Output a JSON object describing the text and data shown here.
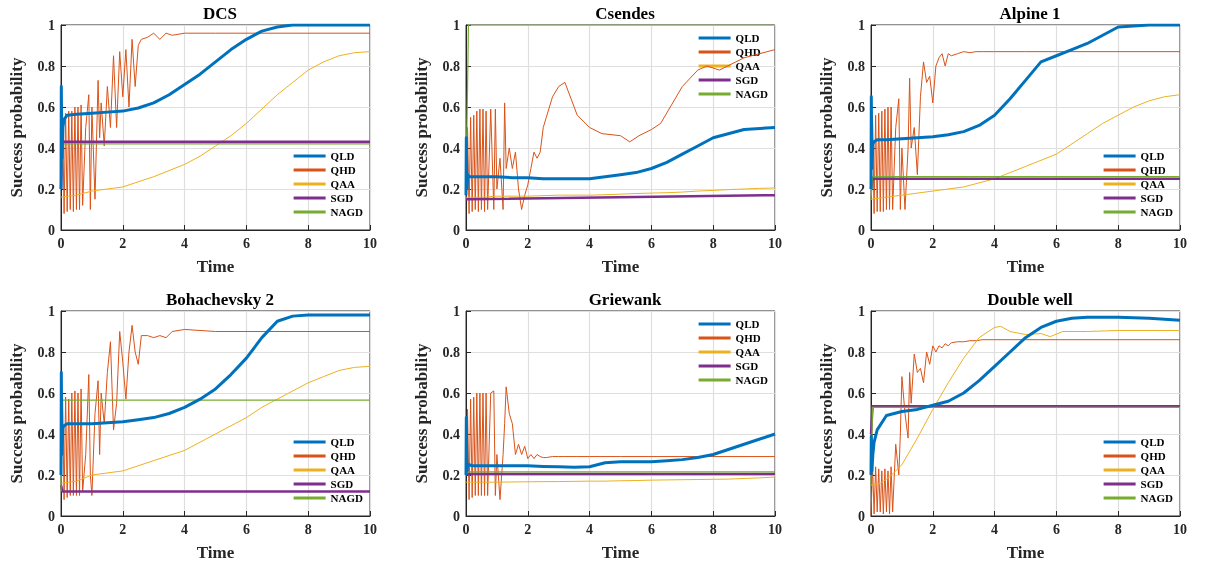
{
  "chart_data": [
    {
      "type": "line",
      "title": "DCS",
      "xlabel": "Time",
      "ylabel": "Success probability",
      "xlim": [
        0,
        10
      ],
      "ylim": [
        0,
        1
      ],
      "xticks": [
        0,
        2,
        4,
        6,
        8,
        10
      ],
      "yticks": [
        0,
        0.2,
        0.4,
        0.6,
        0.8,
        1
      ],
      "grid": true,
      "legend": "bottom right",
      "x": [
        0,
        0.01,
        0.03,
        0.06,
        0.1,
        0.2,
        0.5,
        1,
        1.5,
        2,
        2.5,
        3,
        3.5,
        4,
        4.5,
        5,
        5.5,
        6,
        6.5,
        7,
        7.5,
        8,
        9,
        10
      ],
      "series": [
        {
          "name": "QLD",
          "color": "#0072bd",
          "values": [
            0.2,
            0.7,
            0.35,
            0.5,
            0.54,
            0.56,
            0.565,
            0.57,
            0.575,
            0.58,
            0.595,
            0.62,
            0.66,
            0.71,
            0.76,
            0.82,
            0.88,
            0.93,
            0.97,
            0.99,
            1,
            1,
            1,
            1
          ]
        },
        {
          "name": "QHD",
          "color": "#d95319",
          "x": [
            0,
            0.05,
            0.1,
            0.15,
            0.2,
            0.25,
            0.3,
            0.35,
            0.4,
            0.45,
            0.5,
            0.55,
            0.6,
            0.65,
            0.7,
            0.8,
            0.9,
            0.95,
            1.0,
            1.1,
            1.2,
            1.25,
            1.3,
            1.4,
            1.5,
            1.6,
            1.7,
            1.8,
            1.9,
            2.0,
            2.1,
            2.2,
            2.3,
            2.4,
            2.5,
            2.6,
            2.8,
            3.0,
            3.2,
            3.4,
            3.6,
            4.0,
            5,
            10
          ],
          "values": [
            0.2,
            0.58,
            0.08,
            0.57,
            0.09,
            0.58,
            0.1,
            0.58,
            0.09,
            0.6,
            0.1,
            0.6,
            0.1,
            0.61,
            0.12,
            0.5,
            0.66,
            0.1,
            0.6,
            0.15,
            0.73,
            0.45,
            0.62,
            0.41,
            0.7,
            0.5,
            0.85,
            0.5,
            0.87,
            0.65,
            0.88,
            0.6,
            0.93,
            0.7,
            0.9,
            0.93,
            0.94,
            0.96,
            0.93,
            0.96,
            0.95,
            0.96,
            0.96,
            0.96
          ]
        },
        {
          "name": "QAA",
          "color": "#edb120",
          "x": [
            0,
            0.5,
            1,
            2,
            3,
            4,
            4.5,
            5,
            5.5,
            6,
            6.5,
            7,
            7.5,
            8,
            8.5,
            9,
            9.5,
            10
          ],
          "values": [
            0.16,
            0.17,
            0.19,
            0.21,
            0.26,
            0.32,
            0.36,
            0.41,
            0.46,
            0.52,
            0.59,
            0.66,
            0.72,
            0.78,
            0.82,
            0.85,
            0.865,
            0.87
          ]
        },
        {
          "name": "SGD",
          "color": "#7e2f8e",
          "x": [
            0,
            0.05,
            10
          ],
          "values": [
            0.2,
            0.43,
            0.43
          ]
        },
        {
          "name": "NAGD",
          "color": "#77ac30",
          "x": [
            0,
            0.05,
            10
          ],
          "values": [
            0.2,
            0.42,
            0.42
          ]
        }
      ]
    },
    {
      "type": "line",
      "title": "Csendes",
      "xlabel": "Time",
      "ylabel": "Success probability",
      "xlim": [
        0,
        10
      ],
      "ylim": [
        0,
        1
      ],
      "xticks": [
        0,
        2,
        4,
        6,
        8,
        10
      ],
      "yticks": [
        0,
        0.2,
        0.4,
        0.6,
        0.8,
        1
      ],
      "grid": true,
      "legend": "top right",
      "x": [
        0,
        0.01,
        0.03,
        0.06,
        0.1,
        0.2,
        0.5,
        1,
        1.5,
        2,
        2.5,
        3,
        3.5,
        4,
        4.5,
        5,
        5.5,
        6,
        6.5,
        7,
        7.5,
        8,
        9,
        10
      ],
      "series": [
        {
          "name": "QLD",
          "color": "#0072bd",
          "values": [
            0.17,
            0.45,
            0.2,
            0.27,
            0.26,
            0.26,
            0.26,
            0.26,
            0.255,
            0.255,
            0.25,
            0.25,
            0.25,
            0.25,
            0.26,
            0.27,
            0.28,
            0.3,
            0.33,
            0.37,
            0.41,
            0.45,
            0.49,
            0.5
          ]
        },
        {
          "name": "QHD",
          "color": "#d95319",
          "x": [
            0,
            0.05,
            0.1,
            0.15,
            0.2,
            0.25,
            0.3,
            0.35,
            0.4,
            0.45,
            0.5,
            0.55,
            0.6,
            0.65,
            0.7,
            0.8,
            0.9,
            0.95,
            1.0,
            1.1,
            1.2,
            1.25,
            1.3,
            1.4,
            1.5,
            1.6,
            1.7,
            1.8,
            1.9,
            2.0,
            2.1,
            2.2,
            2.3,
            2.4,
            2.5,
            2.6,
            2.8,
            3.0,
            3.2,
            3.4,
            3.6,
            4.0,
            4.4,
            5,
            5.3,
            5.6,
            6,
            6.3,
            7,
            7.5,
            7.8,
            8.2,
            9,
            10
          ],
          "values": [
            0.2,
            0.5,
            0.08,
            0.55,
            0.09,
            0.56,
            0.1,
            0.58,
            0.09,
            0.59,
            0.1,
            0.59,
            0.09,
            0.58,
            0.1,
            0.59,
            0.1,
            0.59,
            0.2,
            0.35,
            0.1,
            0.62,
            0.3,
            0.4,
            0.3,
            0.38,
            0.2,
            0.1,
            0.17,
            0.22,
            0.3,
            0.38,
            0.35,
            0.38,
            0.5,
            0.55,
            0.65,
            0.7,
            0.72,
            0.64,
            0.56,
            0.5,
            0.47,
            0.46,
            0.43,
            0.46,
            0.49,
            0.52,
            0.7,
            0.78,
            0.8,
            0.78,
            0.84,
            0.88
          ]
        },
        {
          "name": "QAA",
          "color": "#edb120",
          "x": [
            0,
            0.5,
            1,
            2,
            3,
            4,
            4.5,
            5,
            5.5,
            6,
            6.5,
            7,
            7.5,
            8,
            8.5,
            9,
            9.5,
            10
          ],
          "values": [
            0.16,
            0.16,
            0.165,
            0.165,
            0.17,
            0.17,
            0.172,
            0.175,
            0.178,
            0.18,
            0.182,
            0.185,
            0.19,
            0.193,
            0.197,
            0.2,
            0.203,
            0.205
          ]
        },
        {
          "name": "SGD",
          "color": "#7e2f8e",
          "x": [
            0,
            0.05,
            10
          ],
          "values": [
            0.15,
            0.15,
            0.17
          ]
        },
        {
          "name": "NAGD",
          "color": "#77ac30",
          "x": [
            0,
            0.08,
            10
          ],
          "values": [
            0.2,
            1,
            1
          ]
        }
      ]
    },
    {
      "type": "line",
      "title": "Alpine 1",
      "xlabel": "Time",
      "ylabel": "Success probability",
      "xlim": [
        0,
        10
      ],
      "ylim": [
        0,
        1
      ],
      "xticks": [
        0,
        2,
        4,
        6,
        8,
        10
      ],
      "yticks": [
        0,
        0.2,
        0.4,
        0.6,
        0.8,
        1
      ],
      "grid": true,
      "legend": "bottom right",
      "x": [
        0,
        0.01,
        0.03,
        0.06,
        0.1,
        0.2,
        0.5,
        1,
        1.5,
        2,
        2.5,
        3,
        3.5,
        4,
        4.5,
        5,
        5.5,
        6,
        6.5,
        7,
        7.5,
        8,
        9,
        10
      ],
      "series": [
        {
          "name": "QLD",
          "color": "#0072bd",
          "values": [
            0.2,
            0.65,
            0.3,
            0.42,
            0.43,
            0.44,
            0.44,
            0.445,
            0.45,
            0.455,
            0.465,
            0.48,
            0.51,
            0.56,
            0.64,
            0.73,
            0.82,
            0.85,
            0.88,
            0.91,
            0.95,
            0.99,
            1,
            1
          ]
        },
        {
          "name": "QHD",
          "color": "#d95319",
          "x": [
            0,
            0.05,
            0.1,
            0.15,
            0.2,
            0.25,
            0.3,
            0.35,
            0.4,
            0.45,
            0.5,
            0.55,
            0.6,
            0.65,
            0.7,
            0.8,
            0.9,
            0.95,
            1.0,
            1.1,
            1.2,
            1.25,
            1.3,
            1.4,
            1.5,
            1.6,
            1.7,
            1.8,
            1.9,
            2.0,
            2.1,
            2.2,
            2.3,
            2.4,
            2.5,
            2.6,
            2.8,
            3.0,
            3.2,
            3.4,
            3.6,
            4.0,
            5,
            10
          ],
          "values": [
            0.2,
            0.55,
            0.08,
            0.56,
            0.09,
            0.57,
            0.09,
            0.58,
            0.09,
            0.59,
            0.1,
            0.6,
            0.1,
            0.6,
            0.1,
            0.5,
            0.64,
            0.1,
            0.4,
            0.1,
            0.4,
            0.74,
            0.4,
            0.5,
            0.27,
            0.65,
            0.82,
            0.72,
            0.75,
            0.62,
            0.8,
            0.84,
            0.86,
            0.8,
            0.86,
            0.85,
            0.86,
            0.87,
            0.865,
            0.87,
            0.87,
            0.87,
            0.87,
            0.87
          ]
        },
        {
          "name": "QAA",
          "color": "#edb120",
          "x": [
            0,
            0.5,
            1,
            2,
            3,
            4,
            4.5,
            5,
            5.5,
            6,
            6.5,
            7,
            7.5,
            8,
            8.5,
            9,
            9.5,
            10
          ],
          "values": [
            0.15,
            0.16,
            0.17,
            0.19,
            0.21,
            0.25,
            0.28,
            0.31,
            0.34,
            0.37,
            0.42,
            0.47,
            0.52,
            0.56,
            0.6,
            0.63,
            0.65,
            0.66
          ]
        },
        {
          "name": "SGD",
          "color": "#7e2f8e",
          "x": [
            0,
            0.05,
            10
          ],
          "values": [
            0.2,
            0.25,
            0.25
          ]
        },
        {
          "name": "NAGD",
          "color": "#77ac30",
          "x": [
            0,
            0.05,
            10
          ],
          "values": [
            0.15,
            0.26,
            0.26
          ]
        }
      ]
    },
    {
      "type": "line",
      "title": "Bohachevsky 2",
      "xlabel": "Time",
      "ylabel": "Success probability",
      "xlim": [
        0,
        10
      ],
      "ylim": [
        0,
        1
      ],
      "xticks": [
        0,
        2,
        4,
        6,
        8,
        10
      ],
      "yticks": [
        0,
        0.2,
        0.4,
        0.6,
        0.8,
        1
      ],
      "grid": true,
      "legend": "bottom right",
      "x": [
        0,
        0.01,
        0.03,
        0.06,
        0.1,
        0.2,
        0.5,
        1,
        1.5,
        2,
        2.5,
        3,
        3.5,
        4,
        4.5,
        5,
        5.5,
        6,
        6.5,
        7,
        7.5,
        8,
        9,
        10
      ],
      "series": [
        {
          "name": "QLD",
          "color": "#0072bd",
          "values": [
            0.2,
            0.7,
            0.3,
            0.43,
            0.44,
            0.45,
            0.45,
            0.45,
            0.455,
            0.46,
            0.47,
            0.48,
            0.5,
            0.53,
            0.57,
            0.62,
            0.69,
            0.77,
            0.87,
            0.95,
            0.975,
            0.98,
            0.98,
            0.98
          ]
        },
        {
          "name": "QHD",
          "color": "#d95319",
          "x": [
            0,
            0.05,
            0.1,
            0.15,
            0.2,
            0.25,
            0.3,
            0.35,
            0.4,
            0.45,
            0.5,
            0.55,
            0.6,
            0.65,
            0.7,
            0.8,
            0.9,
            0.95,
            1.0,
            1.1,
            1.2,
            1.25,
            1.3,
            1.4,
            1.5,
            1.6,
            1.7,
            1.8,
            1.9,
            2.0,
            2.1,
            2.2,
            2.3,
            2.4,
            2.5,
            2.6,
            2.8,
            3.0,
            3.2,
            3.4,
            3.6,
            4.0,
            5,
            10
          ],
          "values": [
            0.2,
            0.57,
            0.08,
            0.58,
            0.09,
            0.57,
            0.1,
            0.6,
            0.1,
            0.61,
            0.1,
            0.6,
            0.1,
            0.62,
            0.12,
            0.3,
            0.69,
            0.2,
            0.1,
            0.5,
            0.66,
            0.3,
            0.6,
            0.45,
            0.7,
            0.85,
            0.42,
            0.55,
            0.9,
            0.75,
            0.57,
            0.8,
            0.93,
            0.8,
            0.74,
            0.88,
            0.88,
            0.87,
            0.88,
            0.87,
            0.9,
            0.91,
            0.9,
            0.9
          ]
        },
        {
          "name": "QAA",
          "color": "#edb120",
          "x": [
            0,
            0.5,
            1,
            2,
            3,
            4,
            4.5,
            5,
            5.5,
            6,
            6.5,
            7,
            7.5,
            8,
            8.5,
            9,
            9.5,
            10
          ],
          "values": [
            0.16,
            0.17,
            0.2,
            0.22,
            0.27,
            0.32,
            0.36,
            0.4,
            0.44,
            0.48,
            0.53,
            0.57,
            0.61,
            0.65,
            0.68,
            0.71,
            0.725,
            0.73
          ]
        },
        {
          "name": "SGD",
          "color": "#7e2f8e",
          "x": [
            0,
            0.05,
            10
          ],
          "values": [
            0.15,
            0.12,
            0.12
          ]
        },
        {
          "name": "NAGD",
          "color": "#77ac30",
          "x": [
            0,
            0.05,
            10
          ],
          "values": [
            0.12,
            0.565,
            0.565
          ]
        }
      ]
    },
    {
      "type": "line",
      "title": "Griewank",
      "xlabel": "Time",
      "ylabel": "Success probability",
      "xlim": [
        0,
        10
      ],
      "ylim": [
        0,
        1
      ],
      "xticks": [
        0,
        2,
        4,
        6,
        8,
        10
      ],
      "yticks": [
        0,
        0.2,
        0.4,
        0.6,
        0.8,
        1
      ],
      "grid": true,
      "legend": "top right",
      "x": [
        0,
        0.01,
        0.03,
        0.06,
        0.1,
        0.2,
        0.5,
        1,
        1.5,
        2,
        2.5,
        3,
        3.5,
        4,
        4.5,
        5,
        5.5,
        6,
        6.5,
        7,
        7.5,
        8,
        9,
        10
      ],
      "series": [
        {
          "name": "QLD",
          "color": "#0072bd",
          "values": [
            0.2,
            0.48,
            0.22,
            0.25,
            0.25,
            0.245,
            0.245,
            0.245,
            0.245,
            0.245,
            0.242,
            0.24,
            0.238,
            0.24,
            0.26,
            0.265,
            0.265,
            0.265,
            0.27,
            0.275,
            0.285,
            0.3,
            0.35,
            0.4
          ]
        },
        {
          "name": "QHD",
          "color": "#d95319",
          "x": [
            0,
            0.05,
            0.1,
            0.15,
            0.2,
            0.25,
            0.3,
            0.35,
            0.4,
            0.45,
            0.5,
            0.55,
            0.6,
            0.65,
            0.7,
            0.8,
            0.9,
            0.95,
            1.0,
            1.1,
            1.2,
            1.25,
            1.3,
            1.4,
            1.5,
            1.6,
            1.7,
            1.8,
            1.9,
            2.0,
            2.1,
            2.2,
            2.3,
            2.4,
            2.5,
            2.6,
            2.8,
            3.0,
            3.2,
            3.4,
            3.6,
            4.0,
            5,
            10
          ],
          "values": [
            0.2,
            0.52,
            0.08,
            0.57,
            0.09,
            0.58,
            0.1,
            0.6,
            0.1,
            0.6,
            0.1,
            0.6,
            0.1,
            0.6,
            0.1,
            0.6,
            0.61,
            0.1,
            0.3,
            0.08,
            0.3,
            0.45,
            0.63,
            0.5,
            0.45,
            0.3,
            0.35,
            0.3,
            0.34,
            0.28,
            0.3,
            0.28,
            0.3,
            0.29,
            0.285,
            0.285,
            0.29,
            0.29,
            0.29,
            0.29,
            0.29,
            0.29,
            0.29,
            0.29
          ]
        },
        {
          "name": "QAA",
          "color": "#edb120",
          "x": [
            0,
            0.5,
            1,
            2,
            3,
            4,
            4.5,
            5,
            5.5,
            6,
            6.5,
            7,
            7.5,
            8,
            8.5,
            9,
            9.5,
            10
          ],
          "values": [
            0.165,
            0.165,
            0.165,
            0.167,
            0.168,
            0.17,
            0.17,
            0.172,
            0.173,
            0.175,
            0.176,
            0.177,
            0.178,
            0.179,
            0.18,
            0.183,
            0.186,
            0.19
          ]
        },
        {
          "name": "SGD",
          "color": "#7e2f8e",
          "x": [
            0,
            0.05,
            10
          ],
          "values": [
            0.2,
            0.205,
            0.205
          ]
        },
        {
          "name": "NAGD",
          "color": "#77ac30",
          "x": [
            0,
            0.05,
            10
          ],
          "values": [
            0.2,
            0.215,
            0.215
          ]
        }
      ]
    },
    {
      "type": "line",
      "title": "Double well",
      "xlabel": "Time",
      "ylabel": "Success probability",
      "xlim": [
        0,
        10
      ],
      "ylim": [
        0,
        1
      ],
      "xticks": [
        0,
        2,
        4,
        6,
        8,
        10
      ],
      "yticks": [
        0,
        0.2,
        0.4,
        0.6,
        0.8,
        1
      ],
      "grid": true,
      "legend": "bottom right",
      "x": [
        0,
        0.01,
        0.03,
        0.06,
        0.1,
        0.2,
        0.5,
        1,
        1.5,
        2,
        2.5,
        3,
        3.5,
        4,
        4.5,
        5,
        5.5,
        6,
        6.5,
        7,
        7.5,
        8,
        9,
        10
      ],
      "series": [
        {
          "name": "QLD",
          "color": "#0072bd",
          "values": [
            0.2,
            0.39,
            0.22,
            0.3,
            0.36,
            0.42,
            0.49,
            0.51,
            0.52,
            0.54,
            0.56,
            0.6,
            0.66,
            0.73,
            0.8,
            0.87,
            0.92,
            0.95,
            0.965,
            0.97,
            0.97,
            0.97,
            0.965,
            0.955
          ]
        },
        {
          "name": "QHD",
          "color": "#d95319",
          "x": [
            0,
            0.05,
            0.1,
            0.15,
            0.2,
            0.25,
            0.3,
            0.35,
            0.4,
            0.45,
            0.5,
            0.55,
            0.6,
            0.65,
            0.7,
            0.8,
            0.9,
            0.95,
            1.0,
            1.1,
            1.2,
            1.25,
            1.3,
            1.4,
            1.5,
            1.6,
            1.7,
            1.8,
            1.9,
            2.0,
            2.1,
            2.2,
            2.3,
            2.4,
            2.5,
            2.6,
            2.8,
            3.0,
            3.2,
            3.4,
            3.6,
            4.0,
            5,
            10
          ],
          "values": [
            0,
            0.25,
            0.01,
            0.24,
            0.02,
            0.23,
            0.02,
            0.22,
            0.01,
            0.23,
            0.02,
            0.22,
            0.01,
            0.24,
            0.02,
            0.35,
            0.2,
            0.4,
            0.68,
            0.5,
            0.38,
            0.7,
            0.55,
            0.79,
            0.7,
            0.72,
            0.65,
            0.8,
            0.74,
            0.83,
            0.8,
            0.83,
            0.82,
            0.84,
            0.83,
            0.845,
            0.85,
            0.85,
            0.855,
            0.855,
            0.86,
            0.86,
            0.86,
            0.86
          ]
        },
        {
          "name": "QAA",
          "color": "#edb120",
          "x": [
            0,
            0.3,
            0.6,
            1,
            1.5,
            2,
            2.5,
            3,
            3.5,
            4,
            4.2,
            4.5,
            5,
            5.5,
            5.8,
            6.2,
            7,
            8,
            10
          ],
          "values": [
            0.15,
            0.16,
            0.19,
            0.25,
            0.38,
            0.52,
            0.65,
            0.77,
            0.87,
            0.92,
            0.925,
            0.9,
            0.885,
            0.89,
            0.875,
            0.9,
            0.9,
            0.905,
            0.905
          ]
        },
        {
          "name": "SGD",
          "color": "#7e2f8e",
          "x": [
            0,
            0.05,
            10
          ],
          "values": [
            0.4,
            0.535,
            0.535
          ]
        },
        {
          "name": "NAGD",
          "color": "#77ac30",
          "x": [
            0,
            0.05,
            10
          ],
          "values": [
            0.15,
            0.53,
            0.53
          ]
        }
      ]
    }
  ]
}
